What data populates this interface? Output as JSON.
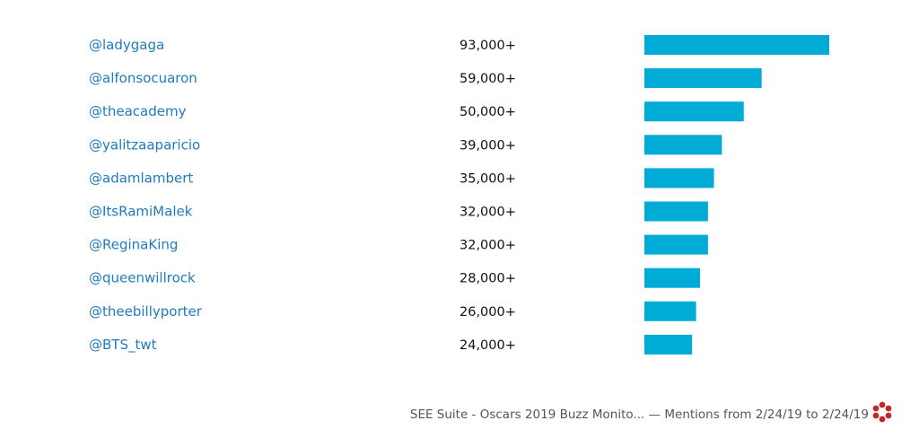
{
  "chart_data": {
    "type": "bar",
    "orientation": "horizontal",
    "categories": [
      "@ladygaga",
      "@alfonsocuaron",
      "@theacademy",
      "@yalitzaaparicio",
      "@adamlambert",
      "@ItsRamiMalek",
      "@ReginaKing",
      "@queenwillrock",
      "@theebillyporter",
      "@BTS_twt"
    ],
    "values": [
      93000,
      59000,
      50000,
      39000,
      35000,
      32000,
      32000,
      28000,
      26000,
      24000
    ],
    "value_labels": [
      "93,000+",
      "59,000+",
      "50,000+",
      "39,000+",
      "35,000+",
      "32,000+",
      "32,000+",
      "28,000+",
      "26,000+",
      "24,000+"
    ],
    "xlim": [
      0,
      93000
    ],
    "grid": false,
    "bar_color": "#00acd6",
    "handle_color": "#1f7bbf"
  },
  "footer": {
    "text": "SEE Suite - Oscars 2019 Buzz Monito... — Mentions from 2/24/19 to 2/24/19",
    "logo_icon": "flower-logo-icon",
    "logo_color": "#c1272d"
  }
}
